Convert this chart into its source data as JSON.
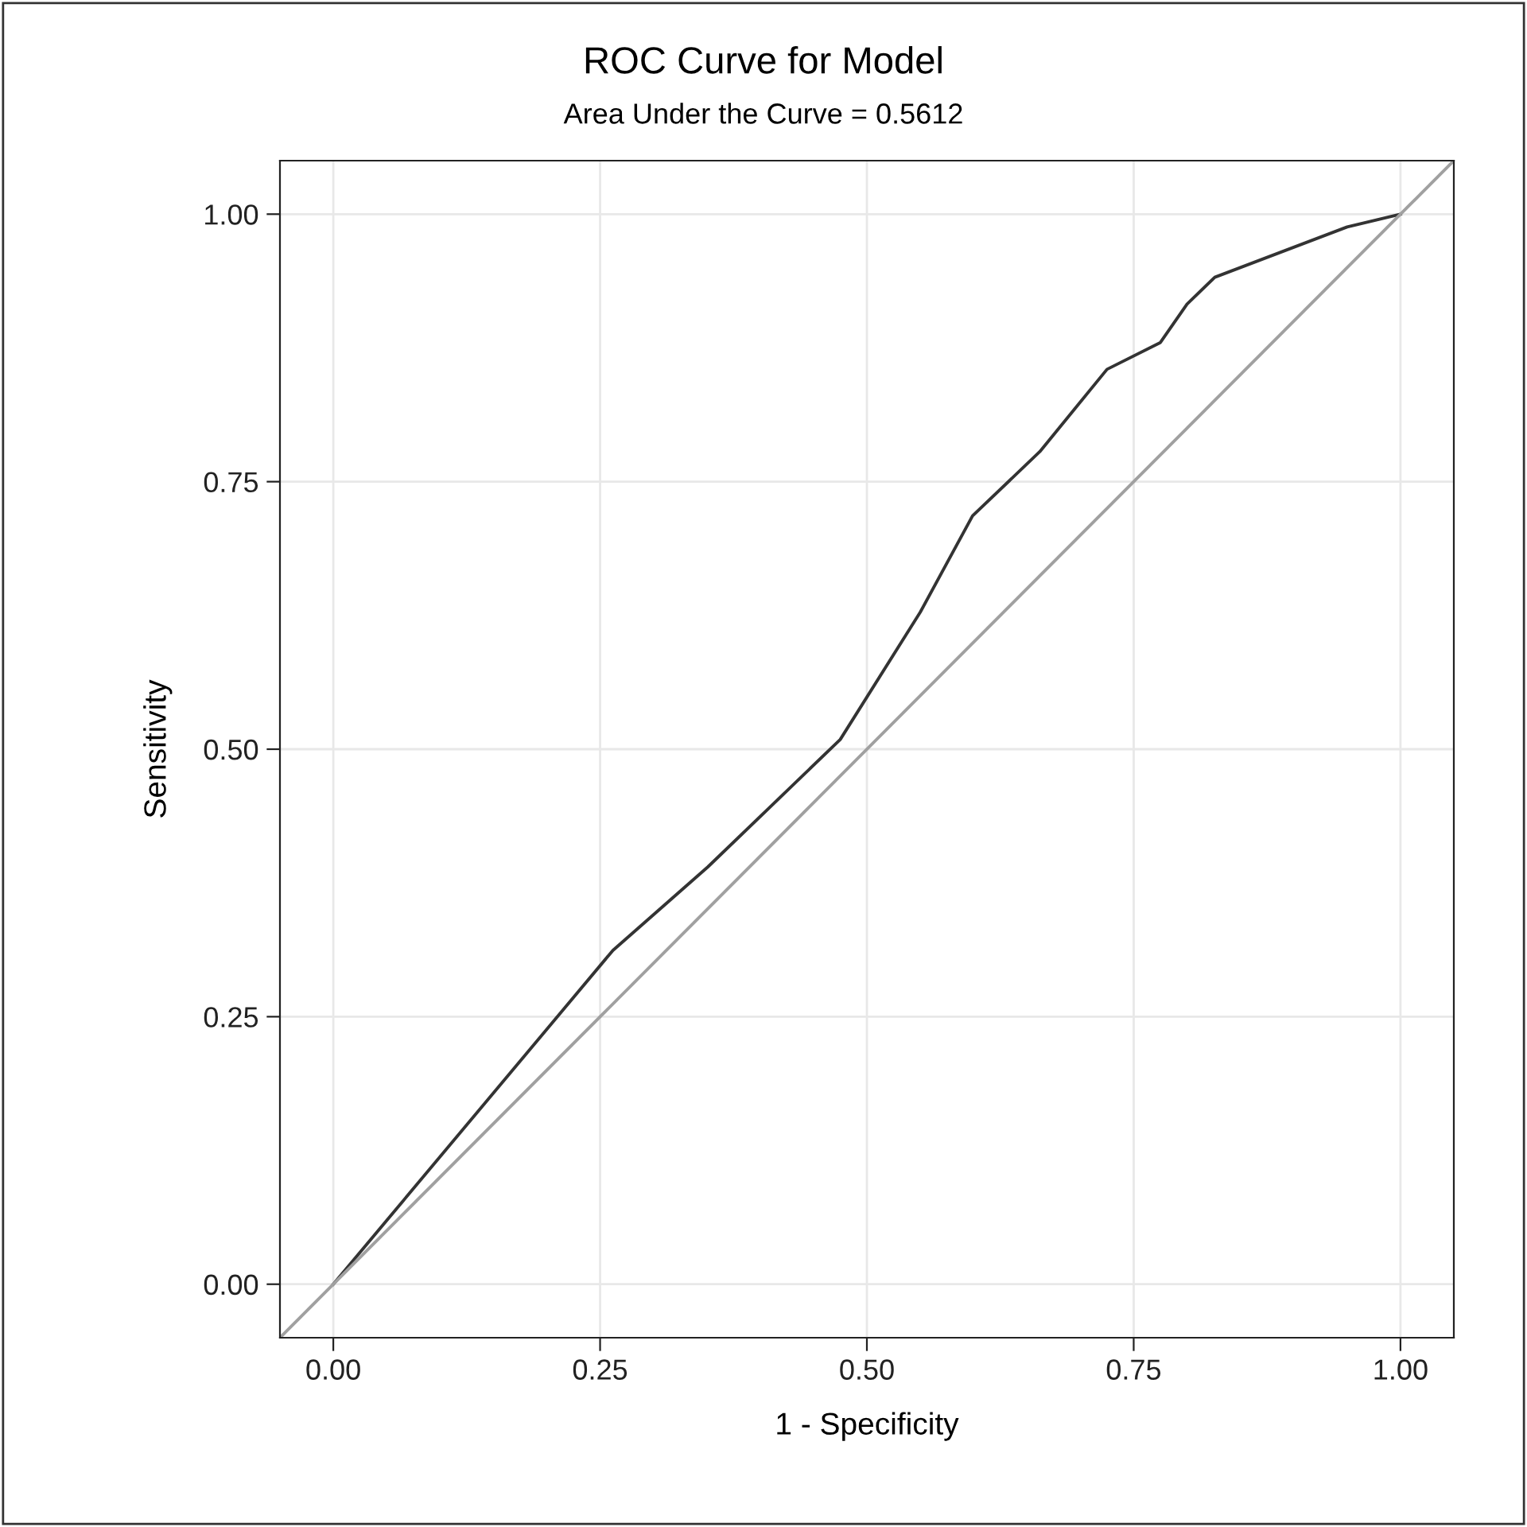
{
  "chart_data": {
    "type": "line",
    "title": "ROC Curve for Model",
    "subtitle": "Area Under the Curve = 0.5612",
    "xlabel": "1 - Specificity",
    "ylabel": "Sensitivity",
    "series": [
      {
        "color": "#333333",
        "x": [
          0,
          0.262,
          0.351,
          0.475,
          0.55,
          0.599,
          0.662,
          0.725,
          0.775,
          0.8,
          0.826,
          0.95,
          1
        ],
        "values": [
          0,
          0.312,
          0.39,
          0.509,
          0.628,
          0.718,
          0.778,
          0.855,
          0.88,
          0.916,
          0.941,
          0.988,
          1
        ]
      },
      {
        "color": "#a0a0a0",
        "x": [
          -0.05,
          1.05
        ],
        "values": [
          -0.05,
          1.05
        ]
      }
    ],
    "xlim": [
      -0.05,
      1.05
    ],
    "ylim": [
      -0.05,
      1.05
    ],
    "xticks": [
      {
        "value": 0,
        "label": "0.00"
      },
      {
        "value": 0.25,
        "label": "0.25"
      },
      {
        "value": 0.5,
        "label": "0.50"
      },
      {
        "value": 0.75,
        "label": "0.75"
      },
      {
        "value": 1,
        "label": "1.00"
      }
    ],
    "yticks": [
      {
        "value": 0,
        "label": "0.00"
      },
      {
        "value": 0.25,
        "label": "0.25"
      },
      {
        "value": 0.5,
        "label": "0.50"
      },
      {
        "value": 0.75,
        "label": "0.75"
      },
      {
        "value": 1,
        "label": "1.00"
      }
    ],
    "grid": true,
    "line_style": "solid",
    "marker": "none"
  }
}
